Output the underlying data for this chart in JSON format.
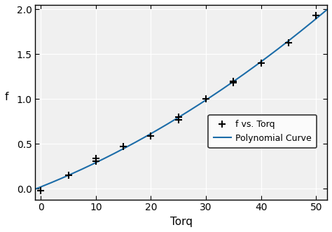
{
  "scatter_x": [
    0,
    5,
    10,
    10,
    15,
    20,
    25,
    25,
    30,
    35,
    35,
    40,
    45,
    50
  ],
  "scatter_y": [
    -0.02,
    0.15,
    0.31,
    0.34,
    0.47,
    0.59,
    0.77,
    0.8,
    1.0,
    1.18,
    1.2,
    1.4,
    1.63,
    1.93
  ],
  "xlim": [
    -1,
    52
  ],
  "ylim": [
    -0.12,
    2.05
  ],
  "xticks": [
    0,
    10,
    20,
    30,
    40,
    50
  ],
  "yticks": [
    0.0,
    0.5,
    1.0,
    1.5,
    2.0
  ],
  "xlabel": "Torq",
  "ylabel": "f",
  "scatter_label": "f vs. Torq",
  "line_label": "Polynomial Curve",
  "line_color": "#1B6CA8",
  "scatter_color": "black",
  "grid_color": "#d3d3d3",
  "axes_facecolor": "#f0f0f0",
  "background_color": "#ffffff",
  "legend_loc": "lower right",
  "title": ""
}
